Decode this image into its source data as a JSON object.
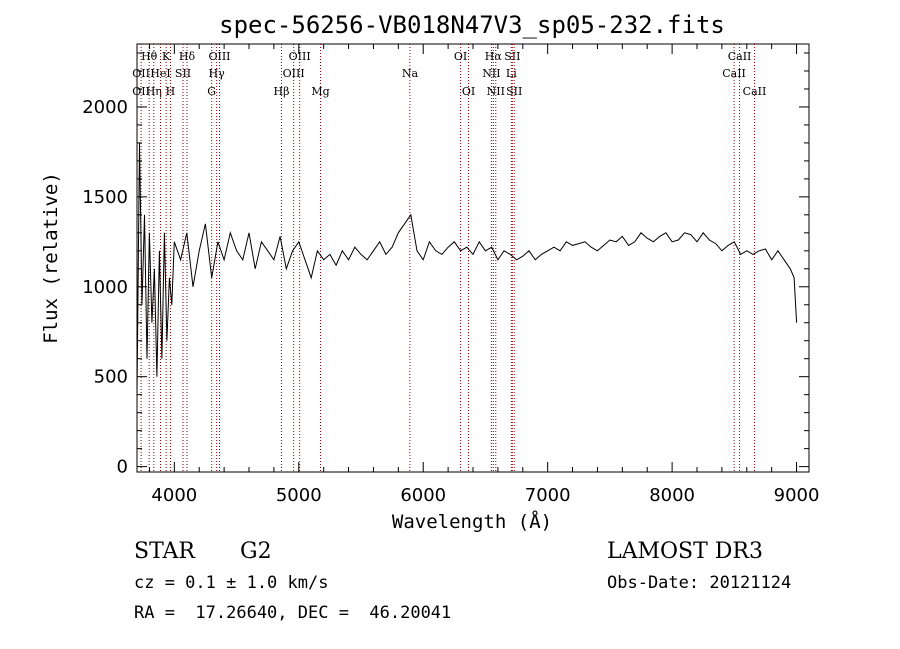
{
  "chart_data": {
    "type": "line",
    "title": "spec-56256-VB018N47V3_sp05-232.fits",
    "xlabel": "Wavelength (Å)",
    "ylabel": "Flux (relative)",
    "xlim": [
      3700,
      9100
    ],
    "ylim": [
      -30,
      2350
    ],
    "xticks": [
      4000,
      5000,
      6000,
      7000,
      8000,
      9000
    ],
    "yticks": [
      0,
      500,
      1000,
      1500,
      2000
    ],
    "grid": false,
    "line_color": "#000000",
    "marker_color": "#8b0000",
    "series": [
      {
        "x": [
          3700,
          3720,
          3740,
          3760,
          3780,
          3800,
          3820,
          3840,
          3860,
          3880,
          3900,
          3920,
          3940,
          3960,
          3980,
          4000,
          4050,
          4100,
          4150,
          4200,
          4250,
          4300,
          4350,
          4400,
          4450,
          4500,
          4550,
          4600,
          4650,
          4700,
          4750,
          4800,
          4850,
          4900,
          4950,
          5000,
          5050,
          5100,
          5150,
          5200,
          5250,
          5300,
          5350,
          5400,
          5450,
          5500,
          5550,
          5600,
          5650,
          5700,
          5750,
          5800,
          5850,
          5900,
          5950,
          6000,
          6050,
          6100,
          6150,
          6200,
          6250,
          6300,
          6350,
          6400,
          6450,
          6500,
          6550,
          6600,
          6650,
          6700,
          6750,
          6800,
          6850,
          6900,
          6950,
          7000,
          7050,
          7100,
          7150,
          7200,
          7250,
          7300,
          7350,
          7400,
          7450,
          7500,
          7550,
          7600,
          7650,
          7700,
          7750,
          7800,
          7850,
          7900,
          7950,
          8000,
          8050,
          8100,
          8150,
          8200,
          8250,
          8300,
          8350,
          8400,
          8450,
          8500,
          8550,
          8600,
          8650,
          8700,
          8750,
          8800,
          8850,
          8900,
          8950,
          8980,
          9000
        ],
        "y": [
          400,
          1800,
          900,
          1400,
          600,
          1300,
          800,
          1100,
          500,
          1200,
          600,
          1300,
          700,
          1050,
          900,
          1250,
          1150,
          1300,
          1000,
          1200,
          1350,
          1050,
          1250,
          1150,
          1300,
          1200,
          1150,
          1300,
          1100,
          1250,
          1200,
          1150,
          1280,
          1100,
          1200,
          1250,
          1150,
          1050,
          1200,
          1150,
          1180,
          1120,
          1200,
          1150,
          1220,
          1180,
          1150,
          1200,
          1250,
          1180,
          1220,
          1300,
          1350,
          1400,
          1200,
          1150,
          1250,
          1200,
          1180,
          1220,
          1250,
          1200,
          1220,
          1180,
          1250,
          1200,
          1220,
          1150,
          1200,
          1180,
          1150,
          1170,
          1200,
          1150,
          1180,
          1200,
          1220,
          1200,
          1250,
          1230,
          1240,
          1250,
          1220,
          1200,
          1230,
          1260,
          1250,
          1280,
          1230,
          1250,
          1300,
          1270,
          1250,
          1280,
          1300,
          1250,
          1260,
          1300,
          1290,
          1250,
          1300,
          1260,
          1240,
          1200,
          1230,
          1250,
          1180,
          1200,
          1180,
          1200,
          1210,
          1150,
          1200,
          1150,
          1100,
          1050,
          800
        ]
      }
    ],
    "lines": [
      {
        "x": 3733,
        "top": "",
        "mid": "OII",
        "low": "OII"
      },
      {
        "x": 3798,
        "top": "Hθ",
        "mid": "",
        "low": ""
      },
      {
        "x": 3835,
        "top": "",
        "mid": "",
        "low": "Hη"
      },
      {
        "x": 3889,
        "top": "",
        "mid": "HeI",
        "low": ""
      },
      {
        "x": 3934,
        "top": "K",
        "mid": "",
        "low": ""
      },
      {
        "x": 3969,
        "top": "",
        "mid": "",
        "low": "H"
      },
      {
        "x": 4070,
        "top": "",
        "mid": "SII",
        "low": ""
      },
      {
        "x": 4102,
        "top": "Hδ",
        "mid": "",
        "low": ""
      },
      {
        "x": 4300,
        "top": "",
        "mid": "",
        "low": "G"
      },
      {
        "x": 4340,
        "top": "",
        "mid": "Hγ",
        "low": ""
      },
      {
        "x": 4363,
        "top": "OIII",
        "mid": "",
        "low": ""
      },
      {
        "x": 4861,
        "top": "",
        "mid": "",
        "low": "Hβ"
      },
      {
        "x": 4959,
        "top": "",
        "mid": "OIII",
        "low": ""
      },
      {
        "x": 5007,
        "top": "OIII",
        "mid": "",
        "low": ""
      },
      {
        "x": 5175,
        "top": "",
        "mid": "",
        "low": "Mg"
      },
      {
        "x": 5893,
        "top": "",
        "mid": "Na",
        "low": ""
      },
      {
        "x": 6300,
        "top": "OI",
        "mid": "",
        "low": ""
      },
      {
        "x": 6364,
        "top": "",
        "mid": "",
        "low": "OI"
      },
      {
        "x": 6548,
        "top": "",
        "mid": "NII",
        "low": ""
      },
      {
        "x": 6563,
        "top": "Hα",
        "mid": "",
        "low": ""
      },
      {
        "x": 6583,
        "top": "",
        "mid": "",
        "low": "NII"
      },
      {
        "x": 6708,
        "top": "",
        "mid": "Li",
        "low": ""
      },
      {
        "x": 6716,
        "top": "SII",
        "mid": "",
        "low": ""
      },
      {
        "x": 6731,
        "top": "",
        "mid": "",
        "low": "SII"
      },
      {
        "x": 8498,
        "top": "",
        "mid": "CaII",
        "low": ""
      },
      {
        "x": 8542,
        "top": "CaII",
        "mid": "",
        "low": ""
      },
      {
        "x": 8662,
        "top": "",
        "mid": "",
        "low": "CaII"
      }
    ]
  },
  "info": {
    "class_label": "STAR",
    "subclass": "G2",
    "survey": "LAMOST DR3",
    "redshift": "cz = 0.1 ± 1.0 km/s",
    "obs_date": "Obs-Date: 20121124",
    "coords": "RA =  17.26640, DEC =  46.20041"
  }
}
